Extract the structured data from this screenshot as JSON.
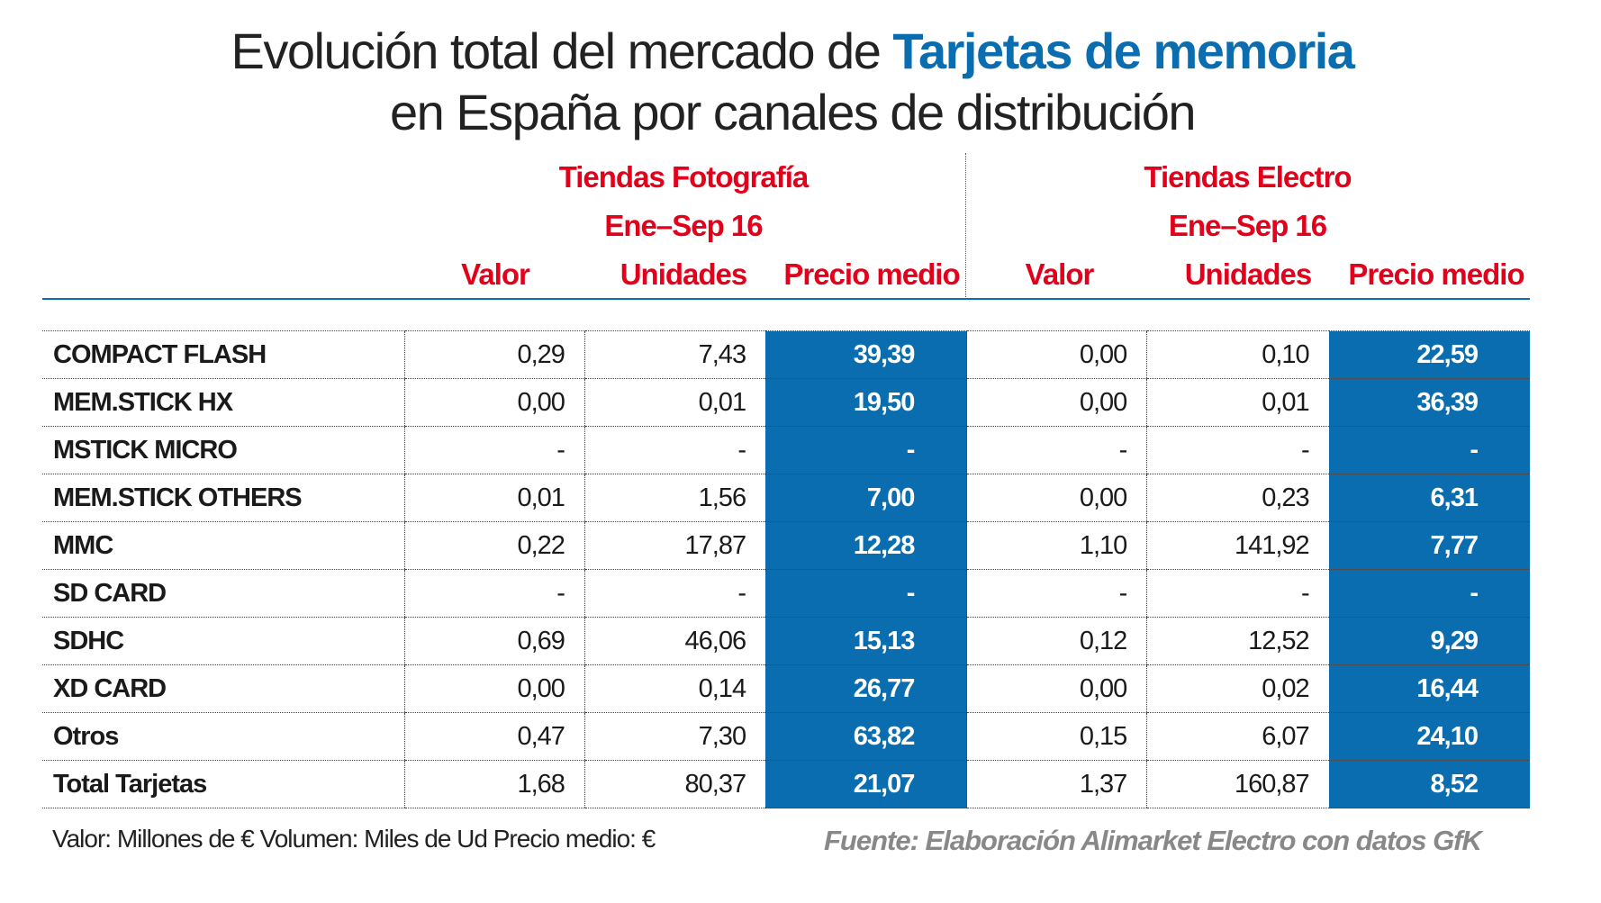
{
  "title": {
    "line1_prefix": "Evolución total del mercado de ",
    "line1_highlight": "Tarjetas de memoria",
    "line2": "en España por canales de distribución"
  },
  "groups": [
    {
      "name": "Tiendas Fotografía",
      "period": "Ene–Sep 16"
    },
    {
      "name": "Tiendas Electro",
      "period": "Ene–Sep 16"
    }
  ],
  "columns": [
    "Valor",
    "Unidades",
    "Precio medio",
    "Valor",
    "Unidades",
    "Precio medio"
  ],
  "rows": [
    {
      "label": "COMPACT FLASH",
      "values": [
        "0,29",
        "7,43",
        "39,39",
        "0,00",
        "0,10",
        "22,59"
      ]
    },
    {
      "label": "MEM.STICK HX",
      "values": [
        "0,00",
        "0,01",
        "19,50",
        "0,00",
        "0,01",
        "36,39"
      ]
    },
    {
      "label": "MSTICK MICRO",
      "values": [
        "-",
        "-",
        "-",
        "-",
        "-",
        "-"
      ]
    },
    {
      "label": "MEM.STICK OTHERS",
      "values": [
        "0,01",
        "1,56",
        "7,00",
        "0,00",
        "0,23",
        "6,31"
      ]
    },
    {
      "label": "MMC",
      "values": [
        "0,22",
        "17,87",
        "12,28",
        "1,10",
        "141,92",
        "7,77"
      ]
    },
    {
      "label": "SD CARD",
      "values": [
        "-",
        "-",
        "-",
        "-",
        "-",
        "-"
      ]
    },
    {
      "label": "SDHC",
      "values": [
        "0,69",
        "46,06",
        "15,13",
        "0,12",
        "12,52",
        "9,29"
      ]
    },
    {
      "label": "XD CARD",
      "values": [
        "0,00",
        "0,14",
        "26,77",
        "0,00",
        "0,02",
        "16,44"
      ]
    },
    {
      "label": "Otros",
      "values": [
        "0,47",
        "7,30",
        "63,82",
        "0,15",
        "6,07",
        "24,10"
      ]
    },
    {
      "label": "Total Tarjetas",
      "values": [
        "1,68",
        "80,37",
        "21,07",
        "1,37",
        "160,87",
        "8,52"
      ]
    }
  ],
  "footer": {
    "units": "Valor: Millones de €  Volumen: Miles de Ud  Precio medio: €",
    "source": "Fuente: Elaboración Alimarket Electro con datos GfK"
  },
  "colors": {
    "accent_blue": "#0a6db0",
    "header_red": "#e2001a"
  }
}
